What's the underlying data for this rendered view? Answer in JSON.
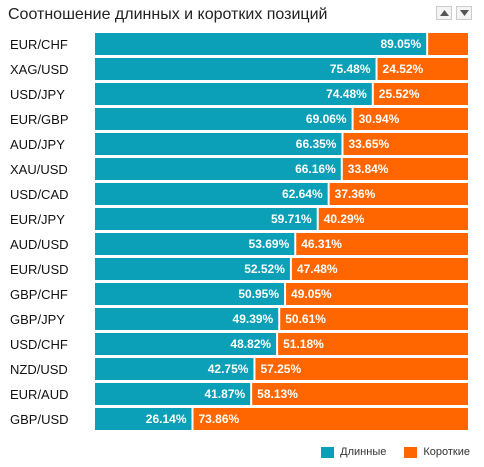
{
  "title": "Соотношение длинных и коротких позиций",
  "colors": {
    "long": "#0b9fb8",
    "short": "#ff6600"
  },
  "controls": {
    "sort_up_icon": "triangle-up-icon",
    "sort_down_icon": "triangle-down-icon"
  },
  "chart_data": {
    "type": "bar",
    "stacked": true,
    "orientation": "horizontal",
    "categories": [
      "EUR/CHF",
      "XAG/USD",
      "USD/JPY",
      "EUR/GBP",
      "AUD/JPY",
      "XAU/USD",
      "USD/CAD",
      "EUR/JPY",
      "AUD/USD",
      "EUR/USD",
      "GBP/CHF",
      "GBP/JPY",
      "USD/CHF",
      "NZD/USD",
      "EUR/AUD",
      "GBP/USD"
    ],
    "series": [
      {
        "name": "Длинные",
        "values": [
          89.05,
          75.48,
          74.48,
          69.06,
          66.35,
          66.16,
          62.64,
          59.71,
          53.69,
          52.52,
          50.95,
          49.39,
          48.82,
          42.75,
          41.87,
          26.14
        ]
      },
      {
        "name": "Короткие",
        "values": [
          10.95,
          24.52,
          25.52,
          30.94,
          33.65,
          33.84,
          37.36,
          40.29,
          46.31,
          47.48,
          49.05,
          50.61,
          51.18,
          57.25,
          58.13,
          73.86
        ]
      }
    ],
    "labels_long": [
      "89.05%",
      "75.48%",
      "74.48%",
      "69.06%",
      "66.35%",
      "66.16%",
      "62.64%",
      "59.71%",
      "53.69%",
      "52.52%",
      "50.95%",
      "49.39%",
      "48.82%",
      "42.75%",
      "41.87%",
      "26.14%"
    ],
    "labels_short": [
      "",
      "24.52%",
      "25.52%",
      "30.94%",
      "33.65%",
      "33.84%",
      "37.36%",
      "40.29%",
      "46.31%",
      "47.48%",
      "49.05%",
      "50.61%",
      "51.18%",
      "57.25%",
      "58.13%",
      "73.86%"
    ],
    "xlim": [
      0,
      100
    ],
    "legend_position": "bottom-right"
  }
}
